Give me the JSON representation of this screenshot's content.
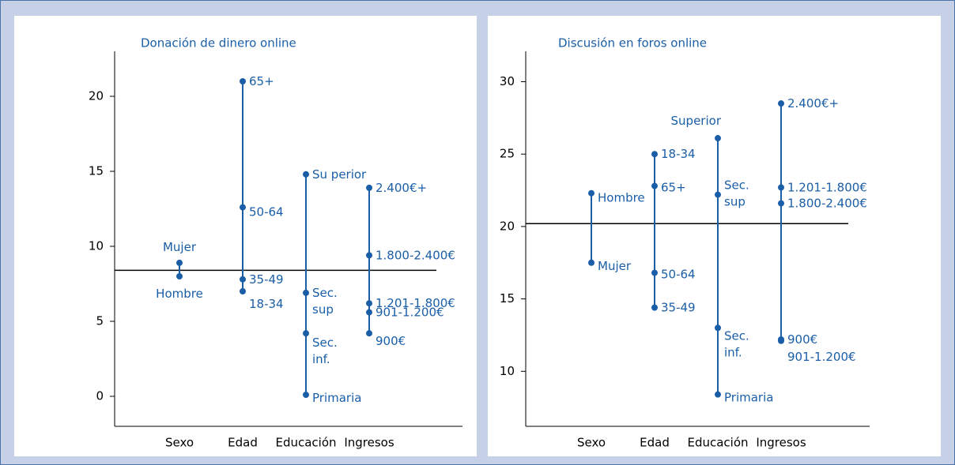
{
  "chart_data": [
    {
      "type": "dot_range",
      "title": "Donación de dinero online",
      "color": "#1a5ea8",
      "categories": [
        "Sexo",
        "Edad",
        "Educación",
        "Ingresos"
      ],
      "groups": [
        {
          "points": [
            {
              "label": [
                "Mujer"
              ],
              "value": 8.9
            },
            {
              "label": [
                "Hombre"
              ],
              "value": 8.0
            }
          ]
        },
        {
          "points": [
            {
              "label": [
                "65+"
              ],
              "value": 21.0
            },
            {
              "label": [
                "50-64"
              ],
              "value": 12.6
            },
            {
              "label": [
                "35-49"
              ],
              "value": 7.8
            },
            {
              "label": [
                "18-34"
              ],
              "value": 7.0
            }
          ]
        },
        {
          "points": [
            {
              "label": [
                "Su perior"
              ],
              "value": 14.8
            },
            {
              "label": [
                "Sec.",
                "sup"
              ],
              "value": 6.9
            },
            {
              "label": [
                "Sec.",
                "inf."
              ],
              "value": 4.2
            },
            {
              "label": [
                "Primaria"
              ],
              "value": 0.1
            }
          ]
        },
        {
          "points": [
            {
              "label": [
                "2.400€+"
              ],
              "value": 13.9
            },
            {
              "label": [
                "1.800-2.400€"
              ],
              "value": 9.4
            },
            {
              "label": [
                "1.201-1.800€"
              ],
              "value": 6.2
            },
            {
              "label": [
                "901-1.200€"
              ],
              "value": 5.6
            },
            {
              "label": [
                "900€"
              ],
              "value": 4.2
            }
          ]
        }
      ],
      "reference": 8.4,
      "ylim": [
        -2,
        23
      ],
      "yticks": [
        0,
        5,
        10,
        15,
        20
      ]
    },
    {
      "type": "dot_range",
      "title": "Discusión en foros online",
      "color": "#1a5ea8",
      "categories": [
        "Sexo",
        "Edad",
        "Educación",
        "Ingresos"
      ],
      "groups": [
        {
          "points": [
            {
              "label": [
                "Hombre"
              ],
              "value": 22.3
            },
            {
              "label": [
                "Mujer"
              ],
              "value": 17.5
            }
          ]
        },
        {
          "points": [
            {
              "label": [
                "18-34"
              ],
              "value": 25.0
            },
            {
              "label": [
                "65+"
              ],
              "value": 22.8
            },
            {
              "label": [
                "50-64"
              ],
              "value": 16.8
            },
            {
              "label": [
                "35-49"
              ],
              "value": 14.4
            }
          ]
        },
        {
          "points": [
            {
              "label": [
                "Superior"
              ],
              "value": 26.1
            },
            {
              "label": [
                "Sec.",
                "sup"
              ],
              "value": 22.2
            },
            {
              "label": [
                "Sec.",
                "inf."
              ],
              "value": 13.0
            },
            {
              "label": [
                "Primaria"
              ],
              "value": 8.4
            }
          ]
        },
        {
          "points": [
            {
              "label": [
                "2.400€+"
              ],
              "value": 28.5
            },
            {
              "label": [
                "1.201-1.800€"
              ],
              "value": 22.7
            },
            {
              "label": [
                "1.800-2.400€"
              ],
              "value": 21.6
            },
            {
              "label": [
                "900€"
              ],
              "value": 12.2
            },
            {
              "label": [
                "901-1.200€"
              ],
              "value": 12.1
            }
          ]
        }
      ],
      "reference": 20.2,
      "ylim": [
        6.2,
        32.1
      ],
      "yticks": [
        10,
        15,
        20,
        25,
        30
      ]
    }
  ]
}
